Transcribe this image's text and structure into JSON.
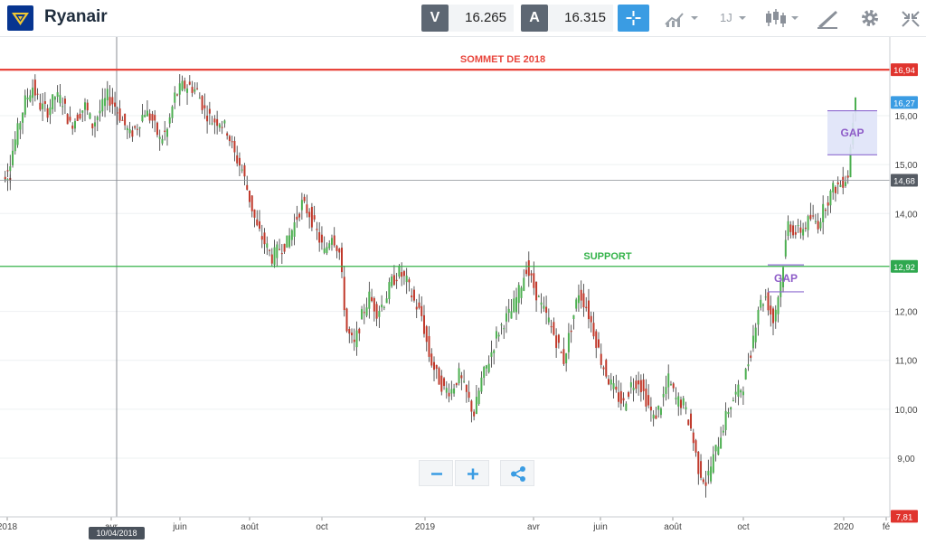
{
  "header": {
    "title": "Ryanair",
    "bid_label": "V",
    "bid_value": "16.265",
    "ask_label": "A",
    "ask_value": "16.315",
    "timeframe_label": "1J",
    "accent": "#3a9ce3"
  },
  "chart_data": {
    "type": "candlestick",
    "title": "",
    "xlabel": "",
    "ylabel": "",
    "ylim": [
      7.81,
      17.5
    ],
    "y_ticks": [
      "16,00",
      "15,00",
      "14,00",
      "12,00",
      "11,00",
      "10,00",
      "9,00"
    ],
    "x_ticks": [
      "2018",
      "avr",
      "juin",
      "août",
      "oct",
      "2019",
      "avr",
      "juin",
      "août",
      "oct",
      "2020",
      "fé"
    ],
    "price_tags": [
      {
        "text": "16,94",
        "value": 16.94,
        "color": "#e0342e"
      },
      {
        "text": "16,27",
        "value": 16.27,
        "color": "#3a9ce3"
      },
      {
        "text": "14,68",
        "value": 14.68,
        "color": "#555b63"
      },
      {
        "text": "12,92",
        "value": 12.92,
        "color": "#2fa84f"
      },
      {
        "text": "7,81",
        "value": 7.81,
        "color": "#e0342e"
      }
    ],
    "hlines": [
      {
        "label": "SOMMET DE 2018",
        "value": 16.94,
        "color": "#e8453c"
      },
      {
        "label": "SUPPORT",
        "value": 12.92,
        "color": "#34b34a"
      },
      {
        "label": "",
        "value": 14.68,
        "color": "#8a8f96"
      }
    ],
    "gaps": [
      {
        "label": "GAP",
        "low": 15.2,
        "high": 16.1
      },
      {
        "label": "GAP",
        "low": 12.4,
        "high": 12.95
      }
    ],
    "crosshair_date": "10/04/2018",
    "series": [
      {
        "values": [
          14.7,
          15.1,
          15.7,
          16.3,
          16.6,
          16.2,
          16.1,
          16.4,
          16.3,
          15.8,
          16.0,
          16.2,
          15.8,
          16.1,
          16.4,
          16.2,
          15.9,
          15.6,
          15.8,
          16.1,
          15.9,
          15.5,
          15.7,
          16.4,
          16.6,
          16.6,
          16.5,
          16.1,
          15.9,
          15.9,
          15.7,
          15.2,
          14.9,
          14.3,
          13.7,
          13.4,
          13.1,
          13.3,
          13.4,
          13.8,
          14.2,
          14.0,
          13.6,
          13.2,
          13.6,
          13.2,
          11.6,
          11.3,
          11.9,
          12.3,
          12.0,
          12.2,
          12.6,
          12.8,
          12.6,
          12.2,
          11.9,
          11.1,
          10.7,
          10.4,
          10.4,
          10.7,
          10.3,
          9.9,
          10.6,
          11.0,
          11.5,
          11.8,
          12.0,
          12.4,
          12.9,
          12.5,
          12.1,
          11.8,
          11.4,
          11.0,
          11.7,
          12.4,
          12.1,
          11.6,
          11.0,
          10.6,
          10.3,
          10.1,
          10.5,
          10.6,
          10.2,
          9.8,
          10.1,
          10.6,
          10.2,
          10.1,
          9.6,
          8.8,
          8.5,
          9.0,
          9.5,
          10.0,
          10.3,
          10.5,
          11.2,
          12.1,
          12.3,
          11.8,
          12.6,
          13.8,
          13.6,
          13.7,
          13.9,
          13.8,
          14.2,
          14.5,
          14.6,
          14.8,
          16.5
        ]
      }
    ]
  }
}
